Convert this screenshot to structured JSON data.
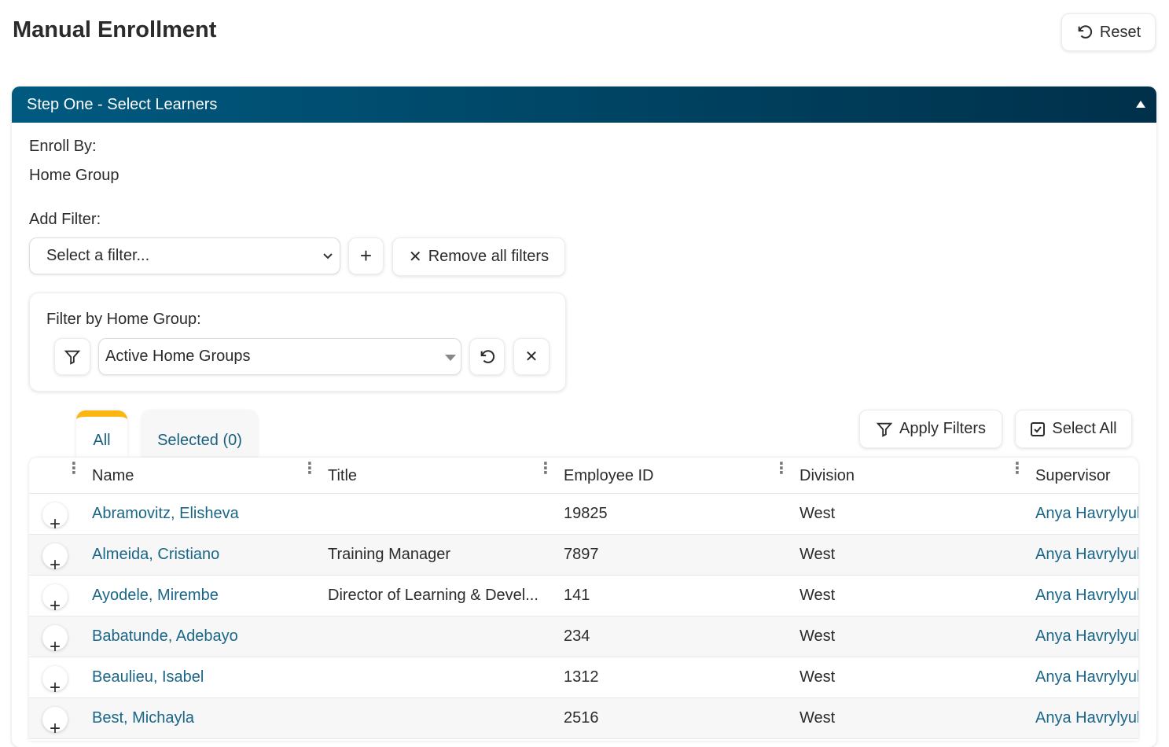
{
  "page": {
    "title": "Manual Enrollment",
    "reset_label": "Reset"
  },
  "panel": {
    "title": "Step One - Select Learners",
    "enroll_by_label": "Enroll By:",
    "enroll_by_value": "Home Group",
    "add_filter_label": "Add Filter:",
    "filter_placeholder": "Select a filter...",
    "remove_all_label": "Remove all filters"
  },
  "home_group_filter": {
    "label": "Filter by Home Group:",
    "value": "Active Home Groups"
  },
  "tabs": [
    {
      "label": "All",
      "active": true
    },
    {
      "label": "Selected (0)",
      "active": false
    }
  ],
  "actions": {
    "apply_filters": "Apply Filters",
    "select_all": "Select All"
  },
  "colors": {
    "header_start": "#005a80",
    "header_end": "#00304a",
    "tab_accent": "#fbb614",
    "link": "#1a6688"
  },
  "table": {
    "columns": [
      "Name",
      "Title",
      "Employee ID",
      "Division",
      "Supervisor"
    ],
    "rows": [
      {
        "name": "Abramovitz, Elisheva",
        "title": "",
        "employee_id": "19825",
        "division": "West",
        "supervisor": "Anya Havrylyuk"
      },
      {
        "name": "Almeida, Cristiano",
        "title": "Training Manager",
        "employee_id": "7897",
        "division": "West",
        "supervisor": "Anya Havrylyuk"
      },
      {
        "name": "Ayodele, Mirembe",
        "title": "Director of Learning & Devel...",
        "employee_id": "141",
        "division": "West",
        "supervisor": "Anya Havrylyuk"
      },
      {
        "name": "Babatunde, Adebayo",
        "title": "",
        "employee_id": "234",
        "division": "West",
        "supervisor": "Anya Havrylyuk"
      },
      {
        "name": "Beaulieu, Isabel",
        "title": "",
        "employee_id": "1312",
        "division": "West",
        "supervisor": "Anya Havrylyuk"
      },
      {
        "name": "Best, Michayla",
        "title": "",
        "employee_id": "2516",
        "division": "West",
        "supervisor": "Anya Havrylyuk"
      }
    ]
  }
}
